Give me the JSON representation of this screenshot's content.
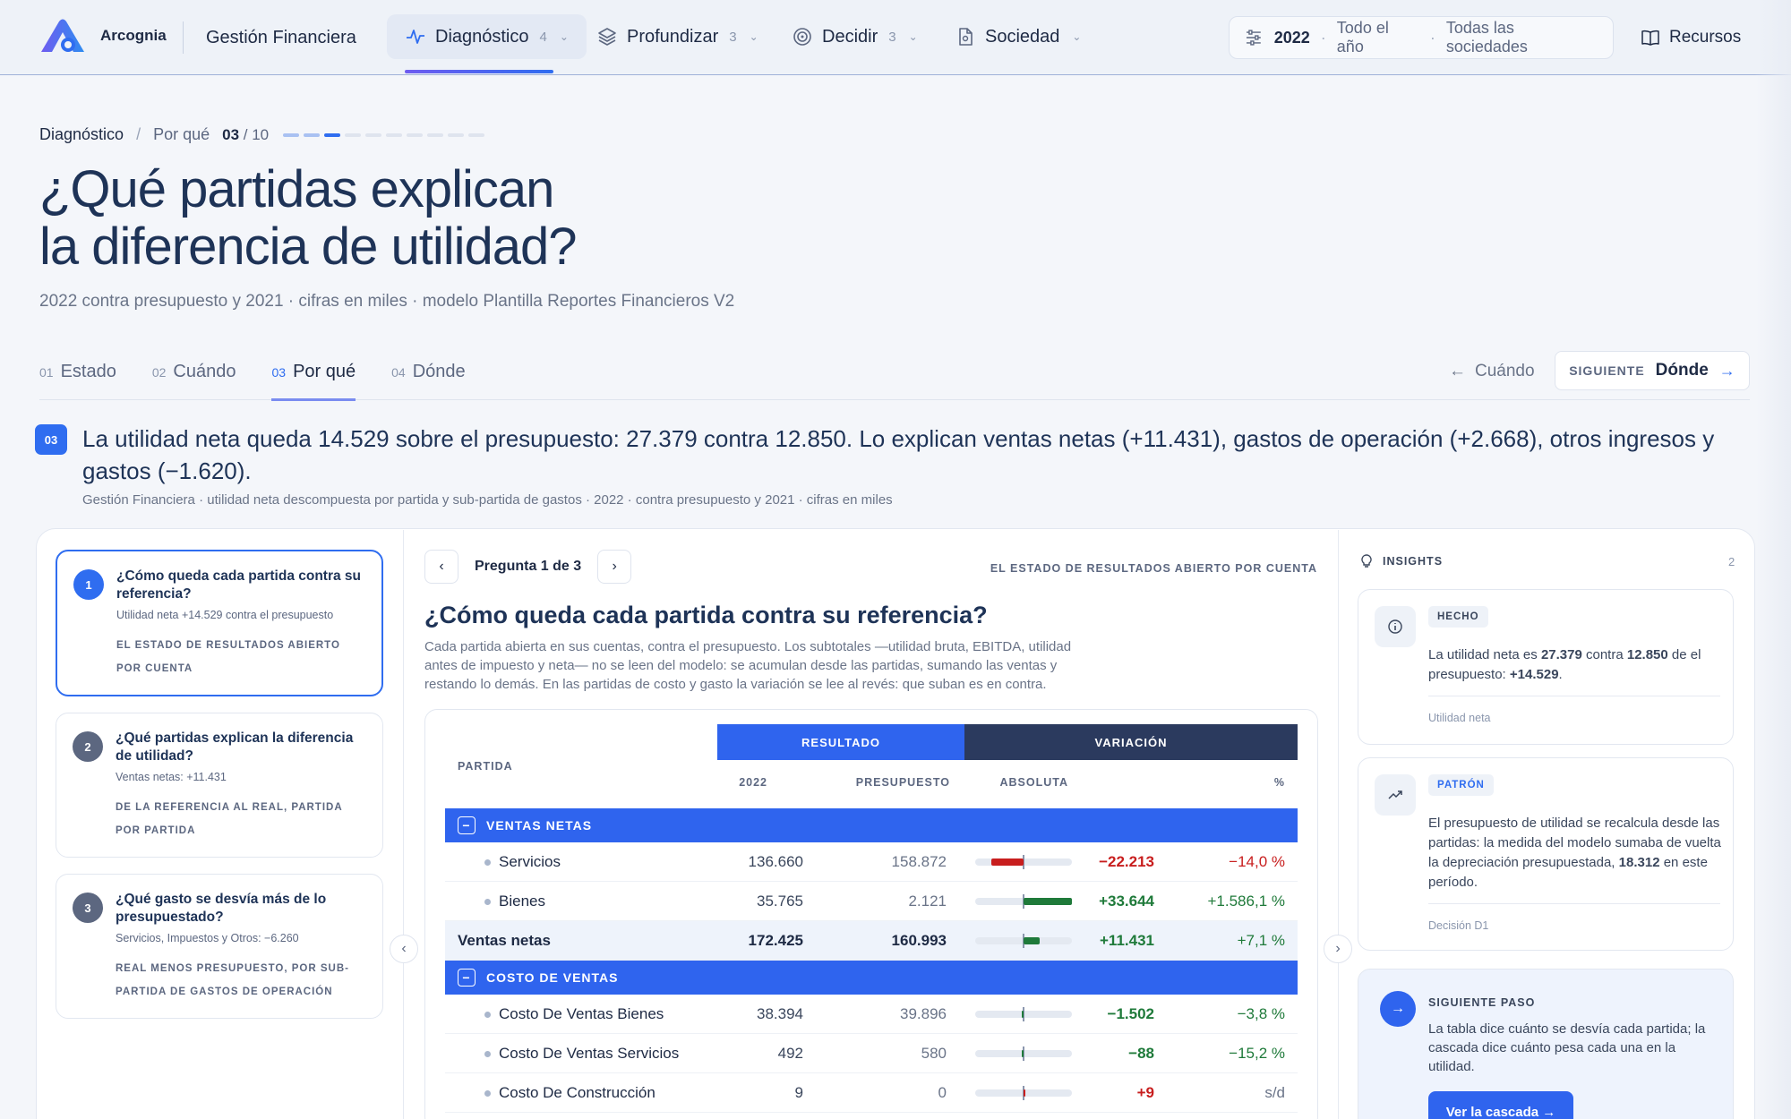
{
  "brand": {
    "name": "Arcognia",
    "app_title": "Gestión Financiera"
  },
  "nav": {
    "tabs": [
      {
        "label": "Diagnóstico",
        "count": "4",
        "icon": "pulse-icon"
      },
      {
        "label": "Profundizar",
        "count": "3",
        "icon": "layers-icon"
      },
      {
        "label": "Decidir",
        "count": "3",
        "icon": "target-icon"
      },
      {
        "label": "Sociedad",
        "count": "",
        "icon": "document-icon"
      }
    ],
    "filters": {
      "year": "2022",
      "period": "Todo el año",
      "companies": "Todas las sociedades"
    },
    "resources": "Recursos"
  },
  "breadcrumb": {
    "section": "Diagnóstico",
    "page": "Por qué",
    "current": "03",
    "total": "/ 10",
    "progress_current": 3,
    "progress_total": 10
  },
  "header": {
    "title_line1": "¿Qué partidas explican",
    "title_line2": "la diferencia de utilidad?",
    "subtitle": "2022 contra presupuesto y 2021 · cifras en miles · modelo Plantilla Reportes Financieros V2"
  },
  "steps": [
    {
      "num": "01",
      "label": "Estado"
    },
    {
      "num": "02",
      "label": "Cuándo"
    },
    {
      "num": "03",
      "label": "Por qué"
    },
    {
      "num": "04",
      "label": "Dónde"
    }
  ],
  "step_nav": {
    "prev": "Cuándo",
    "next_label": "SIGUIENTE",
    "next": "Dónde"
  },
  "finding": {
    "badge": "03",
    "text": "La utilidad neta queda 14.529 sobre el presupuesto: 27.379 contra 12.850. Lo explican ventas netas (+11.431), gastos de operación (+2.668), otros ingresos y gastos (−1.620).",
    "meta": "Gestión Financiera · utilidad neta descompuesta por partida y sub-partida de gastos · 2022 · contra presupuesto y 2021 · cifras en miles"
  },
  "questions": [
    {
      "num": "1",
      "title": "¿Cómo queda cada partida contra su referencia?",
      "sub": "Utilidad neta +14.529 contra el presupuesto",
      "tag": "El estado de resultados abierto por cuenta"
    },
    {
      "num": "2",
      "title": "¿Qué partidas explican la diferencia de utilidad?",
      "sub": "Ventas netas: +11.431",
      "tag": "De la referencia al real, partida por partida"
    },
    {
      "num": "3",
      "title": "¿Qué gasto se desvía más de lo presupuestado?",
      "sub": "Servicios, Impuestos y Otros: −6.260",
      "tag": "Real menos presupuesto, por sub-partida de gastos de operación"
    }
  ],
  "pager": {
    "text": "Pregunta 1 de 3",
    "caption": "EL ESTADO DE RESULTADOS ABIERTO POR CUENTA"
  },
  "question_detail": {
    "heading": "¿Cómo queda cada partida contra su referencia?",
    "description": "Cada partida abierta en sus cuentas, contra el presupuesto. Los subtotales —utilidad bruta, EBITDA, utilidad antes de impuesto y neta— no se leen del modelo: se acumulan desde las partidas, sumando las ventas y restando lo demás. En las partidas de costo y gasto la variación se lee al revés: que suban es en contra."
  },
  "table": {
    "group_result": "RESULTADO",
    "group_variation": "VARIACIÓN",
    "col_partida": "PARTIDA",
    "col_year": "2022",
    "col_budget": "PRESUPUESTO",
    "col_abs": "ABSOLUTA",
    "col_pct": "%",
    "sections": [
      {
        "label": "VENTAS NETAS",
        "rows": [
          {
            "name": "Servicios",
            "actual": "136.660",
            "budget": "158.872",
            "abs": "−22.213",
            "pct": "−14,0 %",
            "tone": "neg",
            "bar": -0.66
          },
          {
            "name": "Bienes",
            "actual": "35.765",
            "budget": "2.121",
            "abs": "+33.644",
            "pct": "+1.586,1 %",
            "tone": "pos",
            "bar": 1.0
          }
        ],
        "subtotal": {
          "name": "Ventas netas",
          "actual": "172.425",
          "budget": "160.993",
          "abs": "+11.431",
          "pct": "+7,1 %",
          "tone": "pos",
          "bar": 0.34
        }
      },
      {
        "label": "COSTO DE VENTAS",
        "rows": [
          {
            "name": "Costo De Ventas Bienes",
            "actual": "38.394",
            "budget": "39.896",
            "abs": "−1.502",
            "pct": "−3,8 %",
            "tone": "pos",
            "bar": -0.045
          },
          {
            "name": "Costo De Ventas Servicios",
            "actual": "492",
            "budget": "580",
            "abs": "−88",
            "pct": "−15,2 %",
            "tone": "pos",
            "bar": -0.01
          },
          {
            "name": "Costo De Construcción",
            "actual": "9",
            "budget": "0",
            "abs": "+9",
            "pct": "s/d",
            "tone": "neg",
            "pct_tone": "na",
            "bar": 0.005
          }
        ]
      }
    ]
  },
  "insights": {
    "title": "INSIGHTS",
    "count": "2",
    "cards": [
      {
        "tag": "HECHO",
        "icon": "info-icon",
        "text_pre": "La utilidad neta es ",
        "v1": "27.379",
        "text_mid": " contra ",
        "v2": "12.850",
        "text_post": " de el presupuesto: ",
        "v3": "+14.529",
        "text_end": ".",
        "source": "Utilidad neta"
      },
      {
        "tag": "PATRÓN",
        "icon": "trend-icon",
        "text_pre": "El presupuesto de utilidad se recalcula desde las partidas: la medida del modelo sumaba de vuelta la depreciación presupuestada, ",
        "v1": "18.312",
        "text_end": " en este período.",
        "source": "Decisión D1"
      }
    ],
    "next": {
      "label": "SIGUIENTE PASO",
      "text": "La tabla dice cuánto se desvía cada partida; la cascada dice cuánto pesa cada una en la utilidad.",
      "button": "Ver la cascada →"
    }
  },
  "colors": {
    "accent": "#2f64ee",
    "navy": "#2b3a5e",
    "positive": "#1f7a3a",
    "negative": "#c81e1e"
  }
}
